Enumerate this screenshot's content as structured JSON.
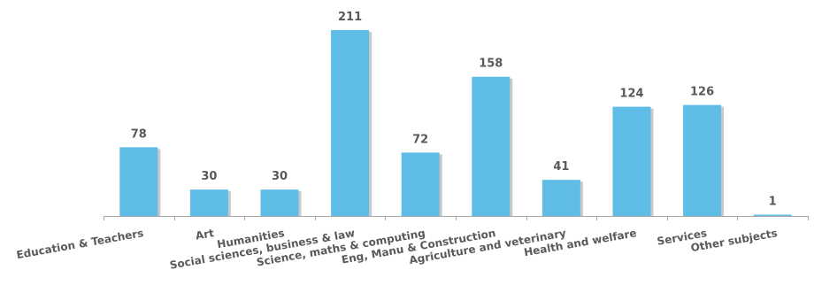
{
  "chart_data": {
    "type": "bar",
    "categories": [
      "Education & Teachers",
      "Art",
      "Humanities",
      "Social sciences, business & law",
      "Science, maths & computing",
      "Eng, Manu & Construction",
      "Agriculture and veterinary",
      "Health and welfare",
      "Services",
      "Other subjects"
    ],
    "values": [
      78,
      30,
      30,
      211,
      72,
      158,
      41,
      124,
      126,
      1
    ],
    "data_labels": [
      "78",
      "30",
      "30",
      "211",
      "72",
      "158",
      "41",
      "124",
      "126",
      "1"
    ],
    "title": "",
    "xlabel": "",
    "ylabel": "",
    "ylim": [
      0,
      211
    ],
    "grid": false,
    "legend": "none",
    "colors": {
      "bar": "#5FBCE6",
      "bar_shadow": "#C9C9C9",
      "axis": "#A6A6A6",
      "text": "#595959"
    }
  }
}
